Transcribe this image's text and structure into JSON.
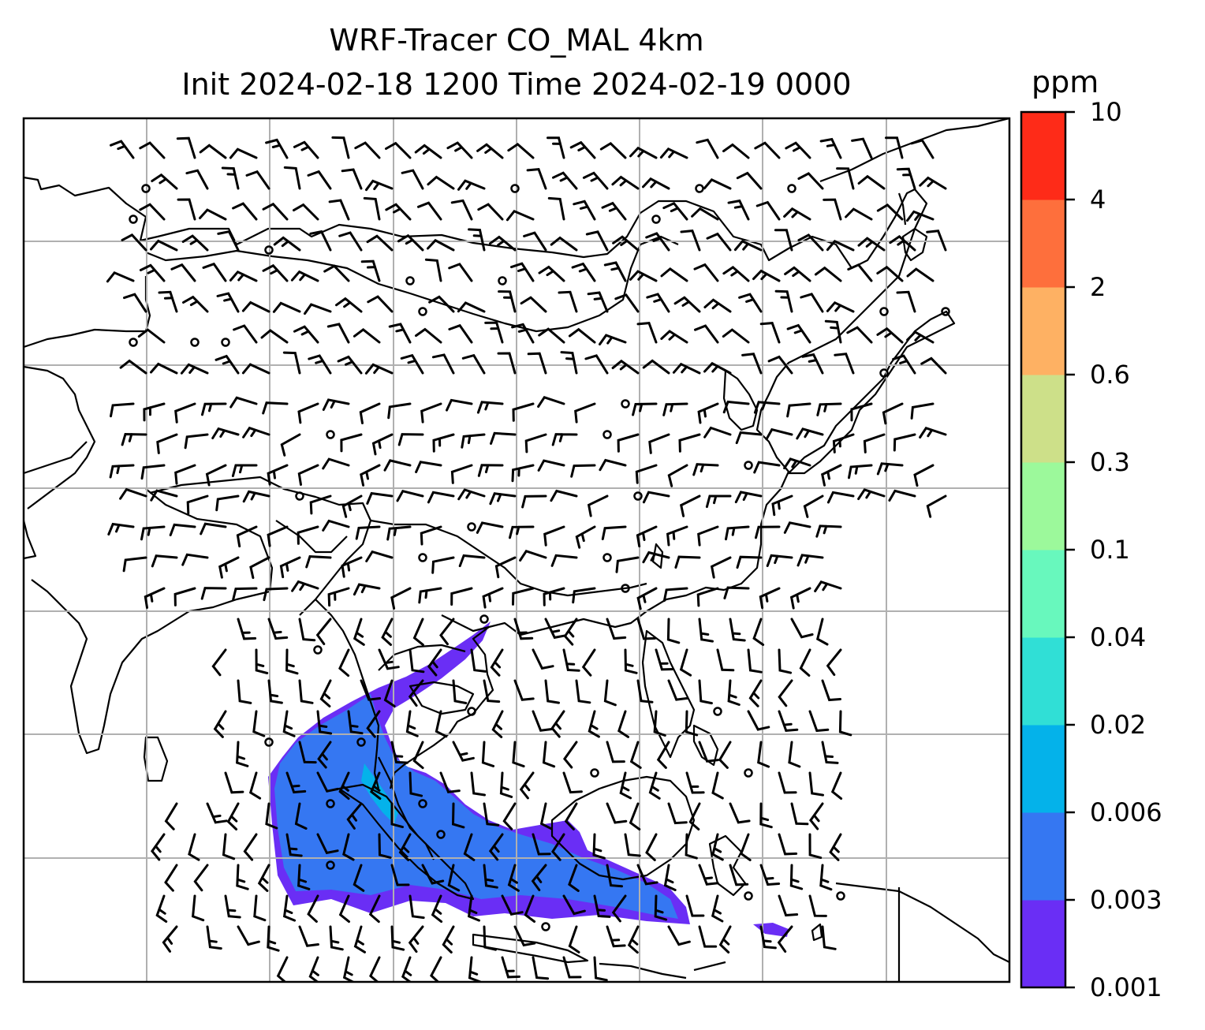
{
  "title": {
    "line1": "WRF-Tracer CO_MAL 4km",
    "line2": "Init 2024-02-18 1200 Time 2024-02-19 0000"
  },
  "colorbar": {
    "unit": "ppm",
    "ticks": [
      "0.001",
      "0.003",
      "0.006",
      "0.02",
      "0.04",
      "0.1",
      "0.3",
      "0.6",
      "2",
      "4",
      "10"
    ],
    "colors": [
      "#6a2ef5",
      "#3577f2",
      "#04b2ea",
      "#30dfd6",
      "#68f8bd",
      "#9cf99b",
      "#cde089",
      "#feb163",
      "#fe6f3c",
      "#fe2b18"
    ]
  },
  "map": {
    "plume_colors": {
      "low": "#6a2ef5",
      "mid": "#3577f2",
      "high": "#04b2ea"
    },
    "gridline_color": "#b0b0b0",
    "coastline_color": "#000000"
  }
}
